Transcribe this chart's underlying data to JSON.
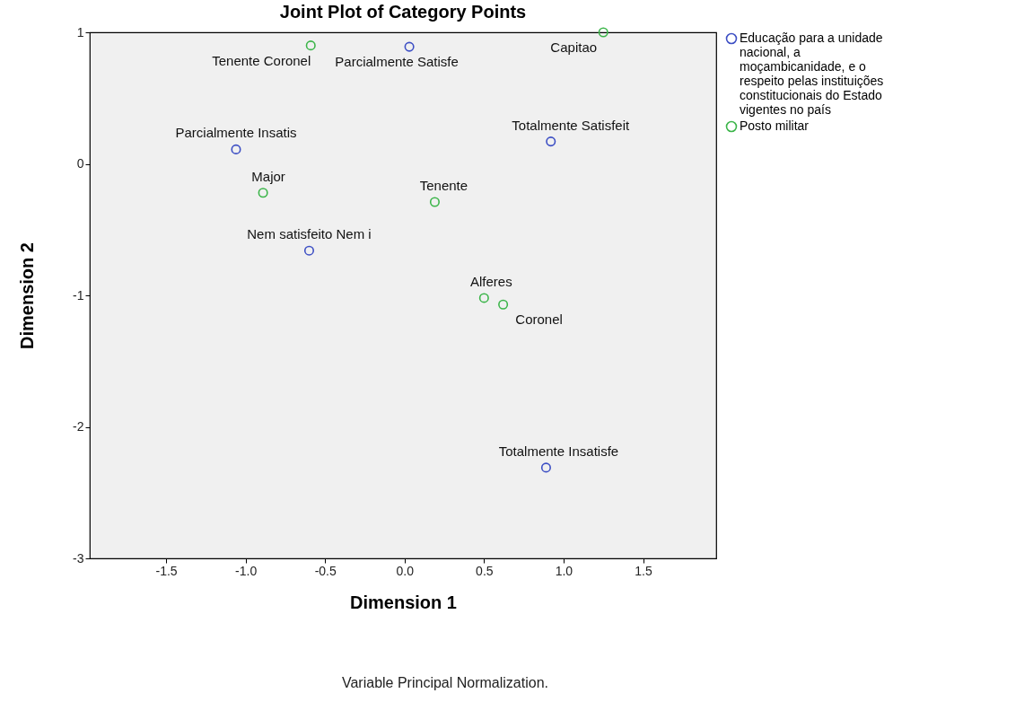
{
  "chart_data": {
    "type": "scatter",
    "title": "Joint Plot of Category Points",
    "xlabel": "Dimension 1",
    "ylabel": "Dimension 2",
    "xlim": [
      -1.98,
      1.96
    ],
    "ylim": [
      -3,
      1
    ],
    "xticks": [
      {
        "value": -1.5,
        "label": "-1.5"
      },
      {
        "value": -1,
        "label": "-1.0"
      },
      {
        "value": -0.5,
        "label": "-0.5"
      },
      {
        "value": 0,
        "label": "0.0"
      },
      {
        "value": 0.5,
        "label": "0.5"
      },
      {
        "value": 1,
        "label": "1.0"
      },
      {
        "value": 1.5,
        "label": "1.5"
      }
    ],
    "yticks": [
      1,
      0,
      -1,
      -2,
      -3
    ],
    "grid": false,
    "legend": "right",
    "marker": "circle",
    "series": [
      {
        "name": "Educação para a unidade nacional, a moçambicanidade, e o respeito pelas instituições constitucionais do Estado vigentes no país",
        "color": "#3d4fc4",
        "x": [
          0.03,
          -1.06,
          0.92,
          -0.6,
          0.89
        ],
        "values": [
          0.89,
          0.11,
          0.17,
          -0.66,
          -2.31
        ]
      },
      {
        "name": "Posto militar",
        "color": "#3cb54a",
        "x": [
          -0.59,
          1.25,
          -0.89,
          0.19,
          0.5,
          0.62
        ],
        "values": [
          0.9,
          1.0,
          -0.22,
          -0.29,
          -1.02,
          -1.07
        ]
      }
    ],
    "annotations": [
      {
        "text": "Parcialmente Satisfe",
        "x": 0.03,
        "y": 0.89
      },
      {
        "text": "Parcialmente Insatis",
        "x": -1.06,
        "y": 0.11
      },
      {
        "text": "Totalmente Satisfeit",
        "x": 0.92,
        "y": 0.17
      },
      {
        "text": "Nem satisfeito Nem i",
        "x": -0.6,
        "y": -0.66
      },
      {
        "text": "Totalmente Insatisfe",
        "x": 0.89,
        "y": -2.31
      },
      {
        "text": "Tenente Coronel",
        "x": -0.59,
        "y": 0.9
      },
      {
        "text": "Capitao",
        "x": 1.25,
        "y": 1.0
      },
      {
        "text": "Major",
        "x": -0.89,
        "y": -0.22
      },
      {
        "text": "Tenente",
        "x": 0.19,
        "y": -0.29
      },
      {
        "text": "Alferes",
        "x": 0.5,
        "y": -1.02
      },
      {
        "text": "Coronel",
        "x": 0.62,
        "y": -1.07
      },
      "Variable Principal Normalization."
    ]
  }
}
